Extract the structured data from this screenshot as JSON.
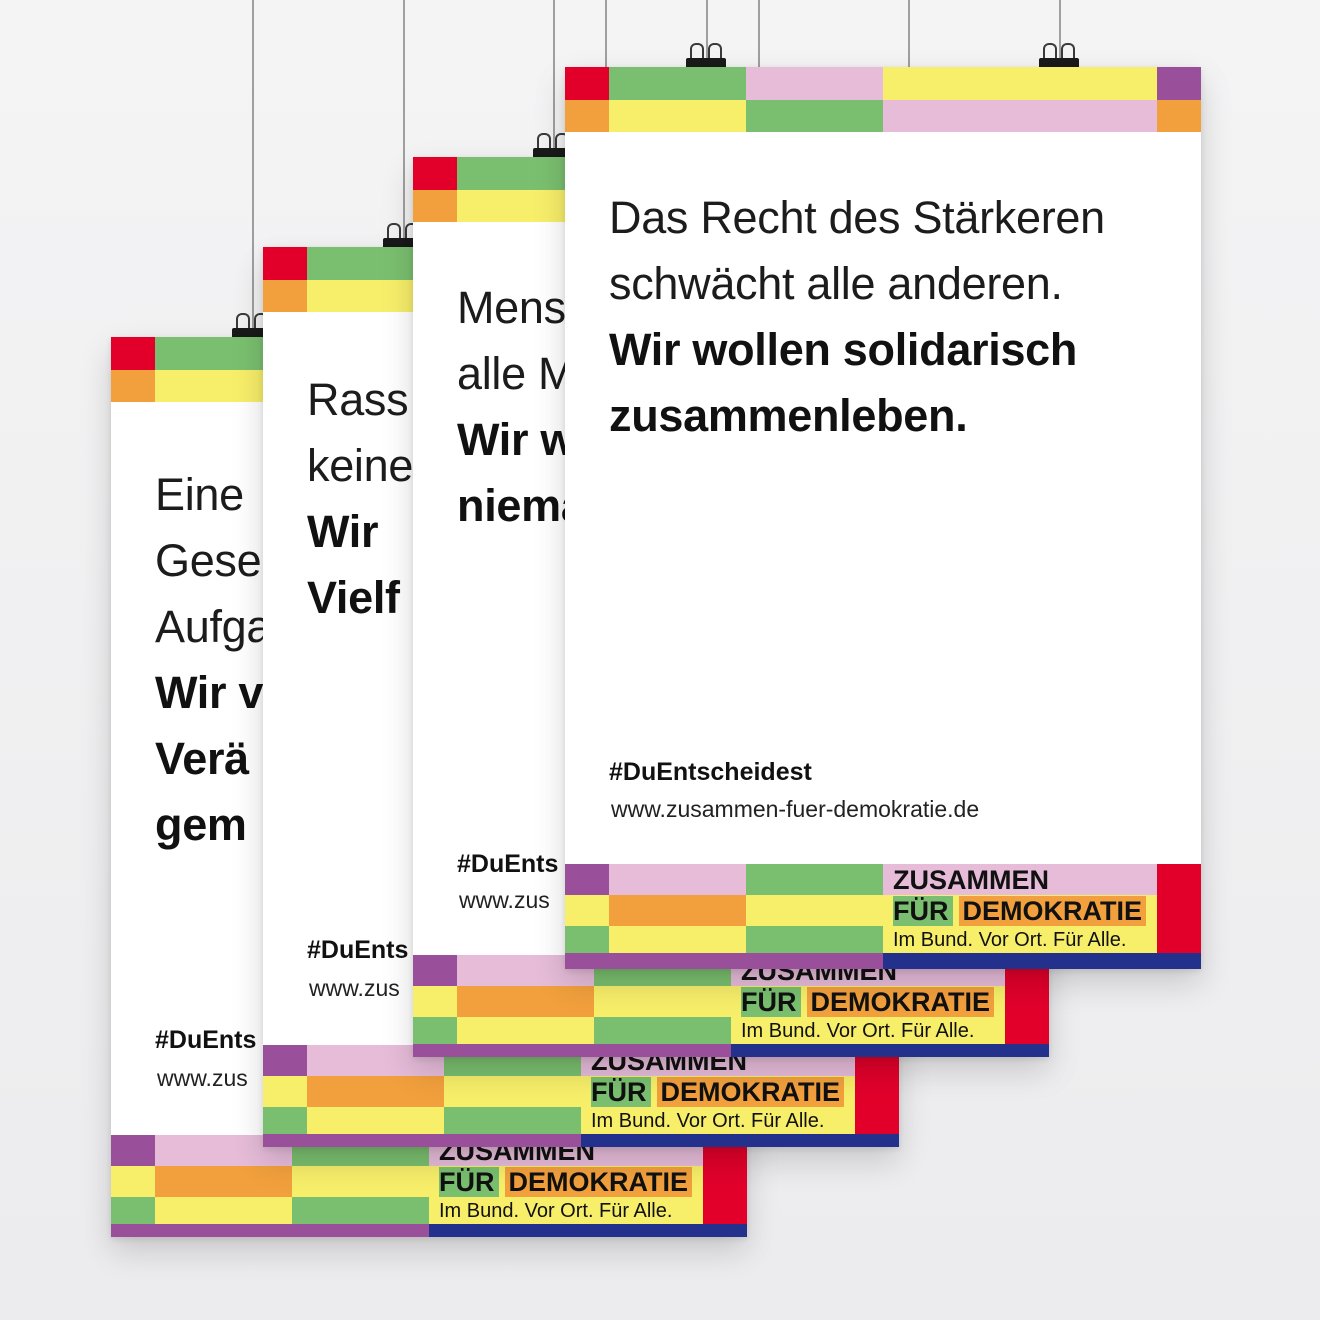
{
  "colors": {
    "red": "#e2002b",
    "green": "#7abf6f",
    "yellow": "#f7ee6a",
    "pink": "#e6bcd9",
    "purple": "#9a4f9a",
    "orange": "#f2a03d",
    "navy": "#24318c"
  },
  "posters": [
    {
      "light_lines": [
        "Eine",
        "Gese",
        "Aufga"
      ],
      "bold_lines": [
        "Wir v",
        "Verä",
        "gem"
      ],
      "hashtag": "#DuEnts",
      "url": "www.zus",
      "logo": {
        "line1": "ZUSAMMEN",
        "fuer": "FÜR",
        "demokratie": "DEMOKRATIE",
        "tagline": "Im Bund. Vor Ort. Für Alle."
      }
    },
    {
      "light_lines": [
        "Rass",
        "keine"
      ],
      "bold_lines": [
        "Wir",
        "Vielf"
      ],
      "hashtag": "#DuEnts",
      "url": "www.zus",
      "logo": {
        "line1": "ZUSAMMEN",
        "fuer": "FÜR",
        "demokratie": "DEMOKRATIE",
        "tagline": "Im Bund. Vor Ort. Für Alle."
      }
    },
    {
      "light_lines": [
        "Mens",
        "alle M"
      ],
      "bold_lines": [
        "Wir w",
        "niema"
      ],
      "hashtag": "#DuEnts",
      "url": "www.zus",
      "logo": {
        "line1": "ZUSAMMEN",
        "fuer": "FÜR",
        "demokratie": "DEMOKRATIE",
        "tagline": "Im Bund. Vor Ort. Für Alle."
      }
    },
    {
      "light_lines": [
        "Das Recht des Stärkeren",
        "schwächt alle anderen."
      ],
      "bold_lines": [
        "Wir wollen solidarisch",
        "zusammenleben."
      ],
      "hashtag": "#DuEntscheidest",
      "url": "www.zusammen-fuer-demokratie.de",
      "logo": {
        "line1": "ZUSAMMEN",
        "fuer": "FÜR",
        "demokratie": "DEMOKRATIE",
        "tagline": "Im Bund. Vor Ort. Für Alle."
      }
    }
  ]
}
